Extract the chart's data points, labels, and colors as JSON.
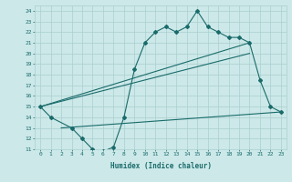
{
  "xlabel": "Humidex (Indice chaleur)",
  "xlim": [
    -0.5,
    23.5
  ],
  "ylim": [
    11,
    24.5
  ],
  "xticks": [
    0,
    1,
    2,
    3,
    4,
    5,
    6,
    7,
    8,
    9,
    10,
    11,
    12,
    13,
    14,
    15,
    16,
    17,
    18,
    19,
    20,
    21,
    22,
    23
  ],
  "yticks": [
    11,
    12,
    13,
    14,
    15,
    16,
    17,
    18,
    19,
    20,
    21,
    22,
    23,
    24
  ],
  "bg_color": "#cce8e8",
  "line_color": "#1a6b6b",
  "grid_color": "#aacfcf",
  "line1_x": [
    0,
    1,
    3,
    4,
    5,
    6,
    7,
    8,
    9,
    10,
    11,
    12,
    13,
    14,
    15,
    16,
    17,
    18,
    19,
    20,
    21,
    22,
    23
  ],
  "line1_y": [
    15,
    14,
    13,
    12,
    11,
    10.8,
    11.2,
    14,
    18.5,
    21,
    22,
    22.5,
    22,
    22.5,
    24,
    22.5,
    22,
    21.5,
    21.5,
    21,
    17.5,
    15,
    14.5
  ],
  "line2_x": [
    0,
    20
  ],
  "line2_y": [
    15,
    21
  ],
  "line3_x": [
    0,
    20
  ],
  "line3_y": [
    15,
    20
  ],
  "line4_x": [
    2,
    23
  ],
  "line4_y": [
    13,
    14.5
  ]
}
